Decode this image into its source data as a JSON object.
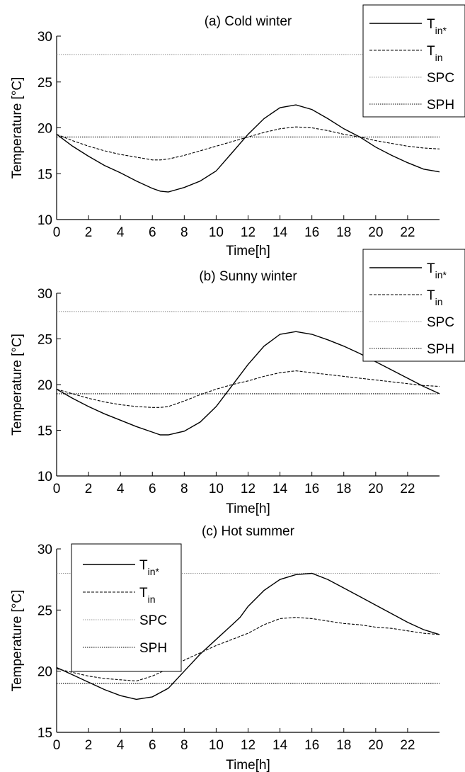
{
  "chart_data": [
    {
      "type": "line",
      "title": "(a) Cold winter",
      "xlabel": "Time[h]",
      "ylabel": "Temperature [°C]",
      "xlim": [
        0,
        24
      ],
      "ylim": [
        10,
        30
      ],
      "xticks": [
        0,
        2,
        4,
        6,
        8,
        10,
        12,
        14,
        16,
        18,
        20,
        22
      ],
      "yticks": [
        10,
        15,
        20,
        25,
        30
      ],
      "legend_position": "top-right",
      "series": [
        {
          "name": "T",
          "sub": "in*",
          "style": "solid",
          "color": "#000000",
          "x": [
            0,
            1,
            2,
            3,
            4,
            5,
            6,
            6.5,
            7,
            8,
            9,
            10,
            11,
            12,
            13,
            14,
            15,
            16,
            17,
            18,
            19,
            20,
            21,
            22,
            23,
            24
          ],
          "y": [
            19.3,
            18.0,
            16.9,
            15.9,
            15.1,
            14.2,
            13.4,
            13.1,
            13.0,
            13.5,
            14.2,
            15.3,
            17.3,
            19.3,
            21.0,
            22.2,
            22.5,
            22.0,
            21.0,
            19.9,
            19.0,
            17.9,
            17.0,
            16.2,
            15.5,
            15.2
          ]
        },
        {
          "name": "T",
          "sub": "in",
          "style": "dashed",
          "color": "#000000",
          "x": [
            0,
            1,
            2,
            3,
            4,
            5,
            6,
            6.5,
            7,
            8,
            9,
            10,
            11,
            12,
            13,
            14,
            15,
            16,
            17,
            18,
            19,
            20,
            21,
            22,
            23,
            24
          ],
          "y": [
            19.3,
            18.6,
            18.0,
            17.5,
            17.1,
            16.8,
            16.5,
            16.5,
            16.6,
            17.0,
            17.5,
            18.0,
            18.5,
            19.0,
            19.5,
            19.9,
            20.1,
            20.0,
            19.7,
            19.3,
            19.0,
            18.6,
            18.3,
            18.0,
            17.8,
            17.7
          ]
        },
        {
          "name": "SPC",
          "style": "dotted",
          "color": "#999999",
          "x": [
            0,
            24
          ],
          "y": [
            28,
            28
          ]
        },
        {
          "name": "SPH",
          "style": "dotted",
          "color": "#000000",
          "x": [
            0,
            24
          ],
          "y": [
            19,
            19
          ]
        }
      ]
    },
    {
      "type": "line",
      "title": "(b) Sunny winter",
      "xlabel": "Time[h]",
      "ylabel": "Temperature [°C]",
      "xlim": [
        0,
        24
      ],
      "ylim": [
        10,
        30
      ],
      "xticks": [
        0,
        2,
        4,
        6,
        8,
        10,
        12,
        14,
        16,
        18,
        20,
        22
      ],
      "yticks": [
        10,
        15,
        20,
        25,
        30
      ],
      "legend_position": "top-right",
      "series": [
        {
          "name": "T",
          "sub": "in*",
          "style": "solid",
          "color": "#000000",
          "x": [
            0,
            1,
            2,
            3,
            4,
            5,
            6,
            6.5,
            7,
            8,
            9,
            10,
            11,
            12,
            13,
            14,
            15,
            16,
            17,
            18,
            19,
            20,
            21,
            22,
            23,
            24
          ],
          "y": [
            19.5,
            18.5,
            17.6,
            16.8,
            16.1,
            15.4,
            14.8,
            14.5,
            14.5,
            14.9,
            15.9,
            17.6,
            19.9,
            22.2,
            24.2,
            25.5,
            25.8,
            25.5,
            24.9,
            24.2,
            23.4,
            22.5,
            21.6,
            20.7,
            19.8,
            19.0
          ]
        },
        {
          "name": "T",
          "sub": "in",
          "style": "dashed",
          "color": "#000000",
          "x": [
            0,
            1,
            2,
            3,
            4,
            5,
            6,
            6.5,
            7,
            8,
            9,
            10,
            11,
            12,
            13,
            14,
            15,
            16,
            17,
            18,
            19,
            20,
            21,
            22,
            23,
            24
          ],
          "y": [
            19.5,
            19.0,
            18.5,
            18.1,
            17.8,
            17.6,
            17.5,
            17.5,
            17.6,
            18.2,
            18.9,
            19.5,
            20.0,
            20.4,
            20.9,
            21.3,
            21.5,
            21.3,
            21.1,
            20.9,
            20.7,
            20.5,
            20.3,
            20.1,
            19.9,
            19.8
          ]
        },
        {
          "name": "SPC",
          "style": "dotted",
          "color": "#999999",
          "x": [
            0,
            24
          ],
          "y": [
            28,
            28
          ]
        },
        {
          "name": "SPH",
          "style": "dotted",
          "color": "#000000",
          "x": [
            0,
            24
          ],
          "y": [
            19,
            19
          ]
        }
      ]
    },
    {
      "type": "line",
      "title": "(c) Hot summer",
      "xlabel": "Time[h]",
      "ylabel": "Temperature [°C]",
      "xlim": [
        0,
        24
      ],
      "ylim": [
        15,
        30
      ],
      "xticks": [
        0,
        2,
        4,
        6,
        8,
        10,
        12,
        14,
        16,
        18,
        20,
        22
      ],
      "yticks": [
        15,
        20,
        25,
        30
      ],
      "legend_position": "top-left",
      "series": [
        {
          "name": "T",
          "sub": "in*",
          "style": "solid",
          "color": "#000000",
          "x": [
            0,
            1,
            2,
            3,
            4,
            5,
            6,
            7,
            8,
            9,
            10,
            11,
            11.5,
            12,
            13,
            14,
            15,
            16,
            17,
            18,
            19,
            20,
            21,
            22,
            23,
            24
          ],
          "y": [
            20.3,
            19.7,
            19.1,
            18.5,
            18.0,
            17.7,
            17.9,
            18.6,
            20.0,
            21.4,
            22.6,
            23.8,
            24.4,
            25.3,
            26.6,
            27.5,
            27.9,
            28.0,
            27.5,
            26.8,
            26.1,
            25.4,
            24.7,
            24.0,
            23.4,
            23.0
          ]
        },
        {
          "name": "T",
          "sub": "in",
          "style": "dashed",
          "color": "#000000",
          "x": [
            0,
            1,
            2,
            3,
            4,
            5,
            6,
            7,
            8,
            9,
            10,
            11,
            12,
            13,
            14,
            15,
            16,
            17,
            18,
            19,
            20,
            21,
            22,
            23,
            24
          ],
          "y": [
            20.2,
            19.9,
            19.6,
            19.4,
            19.3,
            19.2,
            19.6,
            20.2,
            20.9,
            21.5,
            22.1,
            22.6,
            23.1,
            23.8,
            24.3,
            24.4,
            24.3,
            24.1,
            23.9,
            23.8,
            23.6,
            23.5,
            23.3,
            23.1,
            23.0
          ]
        },
        {
          "name": "SPC",
          "style": "dotted",
          "color": "#999999",
          "x": [
            0,
            24
          ],
          "y": [
            28,
            28
          ]
        },
        {
          "name": "SPH",
          "style": "dotted",
          "color": "#000000",
          "x": [
            0,
            24
          ],
          "y": [
            19,
            19
          ]
        }
      ]
    }
  ]
}
